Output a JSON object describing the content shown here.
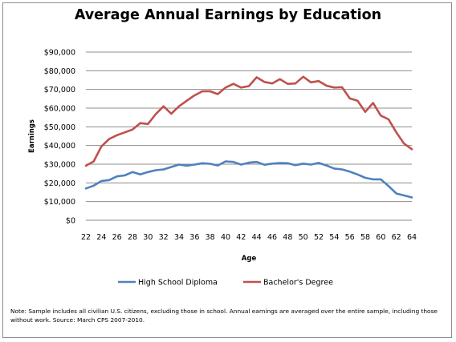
{
  "chart_data": {
    "type": "line",
    "title": "Average Annual Earnings by Education",
    "xlabel": "Age",
    "ylabel": "Earnings",
    "xlim": [
      22,
      64
    ],
    "ylim": [
      0,
      90000
    ],
    "x_ticks": [
      "22",
      "24",
      "26",
      "28",
      "30",
      "32",
      "34",
      "36",
      "38",
      "40",
      "42",
      "44",
      "46",
      "48",
      "50",
      "52",
      "54",
      "56",
      "58",
      "60",
      "62",
      "64"
    ],
    "y_ticks": [
      "$0",
      "$10,000",
      "$20,000",
      "$30,000",
      "$40,000",
      "$50,000",
      "$60,000",
      "$70,000",
      "$80,000",
      "$90,000"
    ],
    "grid": "horizontal",
    "legend_position": "bottom",
    "x": [
      22,
      23,
      24,
      25,
      26,
      27,
      28,
      29,
      30,
      31,
      32,
      33,
      34,
      35,
      36,
      37,
      38,
      39,
      40,
      41,
      42,
      43,
      44,
      45,
      46,
      47,
      48,
      49,
      50,
      51,
      52,
      53,
      54,
      55,
      56,
      57,
      58,
      59,
      60,
      61,
      62,
      63,
      64
    ],
    "series": [
      {
        "name": "High School Diploma",
        "color": "#4f81bd",
        "values": [
          17000,
          18500,
          21000,
          21500,
          23500,
          24000,
          25800,
          24500,
          25800,
          26800,
          27200,
          28500,
          29800,
          29200,
          29800,
          30500,
          30200,
          29300,
          31500,
          31200,
          29800,
          30800,
          31200,
          29700,
          30300,
          30600,
          30500,
          29500,
          30300,
          29800,
          30700,
          29300,
          27700,
          27200,
          26000,
          24500,
          22700,
          21900,
          21900,
          18300,
          14300,
          13300,
          12200
        ]
      },
      {
        "name": "Bachelor's Degree",
        "color": "#c0504d",
        "values": [
          29200,
          31500,
          39500,
          43500,
          45500,
          47000,
          48500,
          52000,
          51500,
          56800,
          61000,
          57000,
          61000,
          64000,
          66800,
          69000,
          69000,
          67500,
          71000,
          73000,
          71000,
          71800,
          76500,
          74000,
          73200,
          75500,
          73000,
          73200,
          76800,
          73800,
          74500,
          72000,
          71000,
          71200,
          65200,
          64000,
          58000,
          62800,
          56000,
          54000,
          47000,
          41000,
          38000
        ]
      }
    ]
  },
  "note": "Note: Sample includes all civilian U.S. citizens, excluding those in school. Annual earnings are averaged over the entire sample, including those without work. Source: March CPS 2007-2010."
}
